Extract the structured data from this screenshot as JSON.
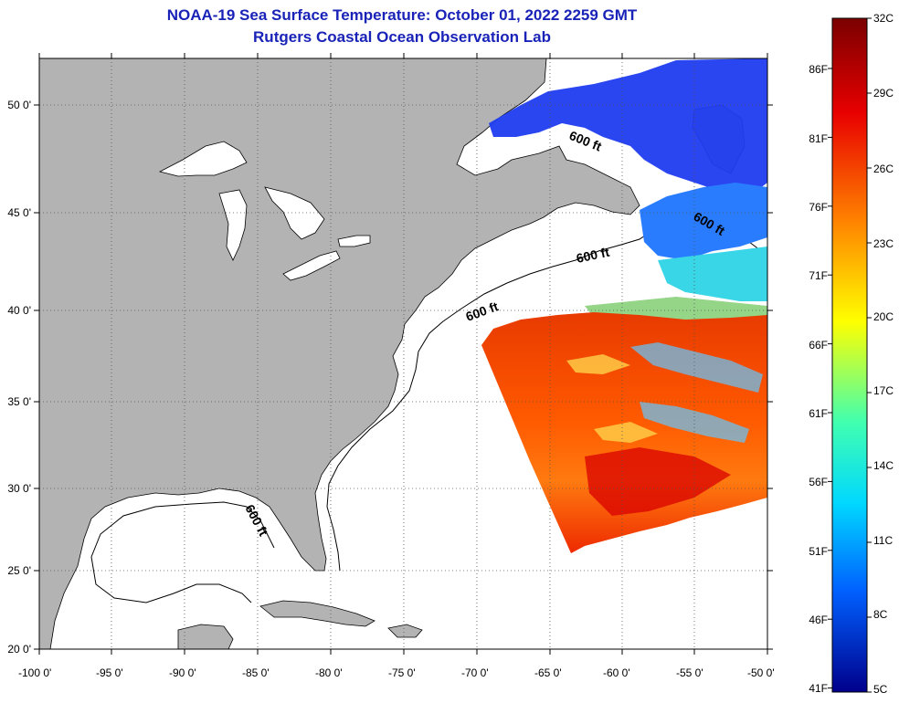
{
  "header": {
    "title": "NOAA-19 Sea Surface Temperature:  October 01, 2022 2259 GMT",
    "subtitle": "Rutgers Coastal Ocean Observation Lab"
  },
  "map": {
    "lat_labels": [
      "50 0'",
      "45 0'",
      "40 0'",
      "35 0'",
      "30 0'",
      "25 0'",
      "20 0'"
    ],
    "lon_labels": [
      "-100 0'",
      "-95 0'",
      "-90 0'",
      "-85 0'",
      "-80 0'",
      "-75 0'",
      "-70 0'",
      "-65 0'",
      "-60 0'",
      "-55 0'",
      "-50 0'"
    ],
    "contour_labels": [
      "600 ft",
      "600 ft",
      "600 ft",
      "600 ft",
      "600 ft"
    ],
    "land_color": "#b3b3b3",
    "ocean_color": "#ffffff",
    "grid": "dotted"
  },
  "colorbar": {
    "f_labels": [
      "86F",
      "81F",
      "76F",
      "71F",
      "66F",
      "61F",
      "56F",
      "51F",
      "46F",
      "41F"
    ],
    "c_labels": [
      "32C",
      "29C",
      "26C",
      "23C",
      "20C",
      "17C",
      "14C",
      "11C",
      "8C",
      "5C"
    ],
    "colors": [
      "#7a0000",
      "#ff0000",
      "#ff8c00",
      "#ffff00",
      "#00ffff",
      "#0064ff",
      "#00008b"
    ]
  }
}
